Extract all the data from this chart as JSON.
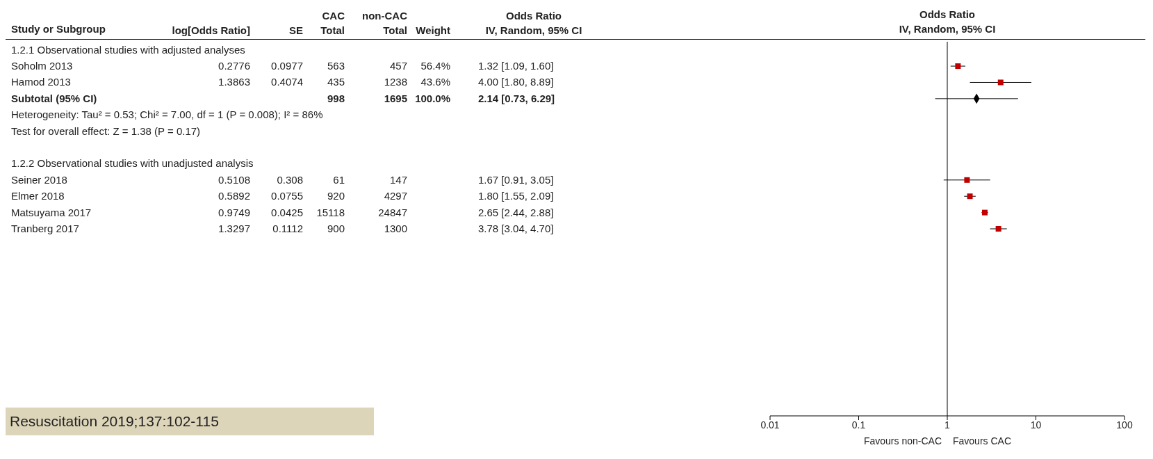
{
  "chart_data": [
    {
      "type": "other",
      "ylabel": "Study or Subgroup",
      "categories": [
        "1.2.1 Observational studies with adjusted analyses",
        "Soholm 2013",
        "Hamod 2013",
        "Subtotal (95% CI)",
        "Heterogeneity: Tau² = 0.53; Chi² = 7.00, df = 1 (P = 0.008); I² = 86%",
        "Test for overall effect: Z = 1.38 (P = 0.17)",
        null,
        "1.2.2 Observational studies with unadjusted analysis",
        "Seiner 2018",
        "Elmer 2018",
        "Matsuyama 2017",
        "Tranberg 2017"
      ],
      "series": [
        {
          "name": "log[Odds Ratio]",
          "values": [
            null,
            0.2776,
            1.3863,
            null,
            null,
            null,
            null,
            null,
            0.5108,
            0.5892,
            0.9749,
            1.3297
          ],
          "value_labels": [
            null,
            "0.2776",
            "1.3863",
            null,
            null,
            null,
            null,
            null,
            "0.5108",
            "0.5892",
            "0.9749",
            "1.3297"
          ]
        },
        {
          "name": "SE",
          "values": [
            null,
            0.0977,
            0.4074,
            null,
            null,
            null,
            null,
            null,
            0.308,
            0.0755,
            0.0425,
            0.1112
          ],
          "value_labels": [
            null,
            "0.0977",
            "0.4074",
            null,
            null,
            null,
            null,
            null,
            "0.308",
            "0.0755",
            "0.0425",
            "0.1112"
          ]
        },
        {
          "name": "CAC\nTotal",
          "values": [
            null,
            563,
            435,
            998,
            null,
            null,
            null,
            null,
            61,
            920,
            15118,
            900
          ],
          "value_labels": [
            null,
            "563",
            "435",
            "998",
            null,
            null,
            null,
            null,
            "61",
            "920",
            "15118",
            "900"
          ]
        },
        {
          "name": "non-CAC\nTotal",
          "values": [
            null,
            457,
            1238,
            1695,
            null,
            null,
            null,
            null,
            147,
            4297,
            24847,
            1300
          ],
          "value_labels": [
            null,
            "457",
            "1238",
            "1695",
            null,
            null,
            null,
            null,
            "147",
            "4297",
            "24847",
            "1300"
          ]
        },
        {
          "name": "Weight",
          "values": [
            null,
            56.4,
            43.6,
            100.0,
            null,
            null,
            null,
            null,
            null,
            null,
            null,
            null
          ],
          "value_labels": [
            null,
            "56.4%",
            "43.6%",
            "100.0%",
            null,
            null,
            null,
            null,
            null,
            null,
            null,
            null
          ]
        },
        {
          "name": "Odds Ratio\nIV, Random, 95% CI",
          "values": [
            null,
            1.32,
            4.0,
            2.14,
            null,
            null,
            null,
            null,
            1.67,
            1.8,
            2.65,
            3.78
          ],
          "value_labels": [
            null,
            "1.32 [1.09, 1.60]",
            "4.00 [1.80, 8.89]",
            "2.14 [0.73, 6.29]",
            null,
            null,
            null,
            null,
            "1.67 [0.91, 3.05]",
            "1.80 [1.55, 2.09]",
            "2.65 [2.44, 2.88]",
            "3.78 [3.04, 4.70]"
          ]
        }
      ],
      "annotations": [
        "Resuscitation 2019;137:102-115"
      ]
    },
    {
      "type": "scatter",
      "orientation": "horizontal",
      "title": "Odds Ratio",
      "subtitle": "IV, Random, 95% CI",
      "log": "x",
      "xlim": [
        0.01,
        100
      ],
      "xticks": [
        0.01,
        0.1,
        1,
        10,
        100
      ],
      "categories": [
        null,
        null,
        null,
        null,
        null,
        null,
        null,
        null,
        null,
        null,
        null,
        null,
        null,
        null,
        null,
        null,
        null,
        null,
        null,
        null,
        null,
        null,
        null
      ],
      "series": [
        {
          "marker": "square",
          "color": "#c00000",
          "values": [
            null,
            1.32,
            4.0,
            null,
            null,
            null,
            null,
            null,
            1.67,
            1.8,
            2.65,
            3.78,
            null,
            null,
            null,
            null,
            null,
            null,
            null,
            null,
            null,
            null,
            null
          ],
          "errors": [
            null,
            [
              1.09,
              1.6
            ],
            [
              1.8,
              8.89
            ],
            null,
            null,
            null,
            null,
            null,
            [
              0.91,
              3.05
            ],
            [
              1.55,
              2.09
            ],
            [
              2.44,
              2.88
            ],
            [
              3.04,
              4.7
            ],
            null,
            null,
            null,
            null,
            null,
            null,
            null,
            null,
            null,
            null,
            null
          ]
        },
        {
          "marker": "diamond",
          "color": "#000000",
          "values": [
            null,
            null,
            null,
            2.14,
            null,
            null,
            null,
            null,
            null,
            null,
            null,
            null,
            null,
            null,
            null,
            null,
            null,
            null,
            null,
            null,
            null,
            null,
            null
          ],
          "errors": [
            null,
            null,
            null,
            [
              0.73,
              6.29
            ],
            null,
            null,
            null,
            null,
            null,
            null,
            null,
            null,
            null,
            null,
            null,
            null,
            null,
            null,
            null,
            null,
            null,
            null,
            null
          ]
        }
      ],
      "ref_lines": [
        {
          "axis": "x",
          "value": 1
        }
      ],
      "annotations": [
        "Favours non-CAC",
        "Favours CAC"
      ]
    }
  ]
}
